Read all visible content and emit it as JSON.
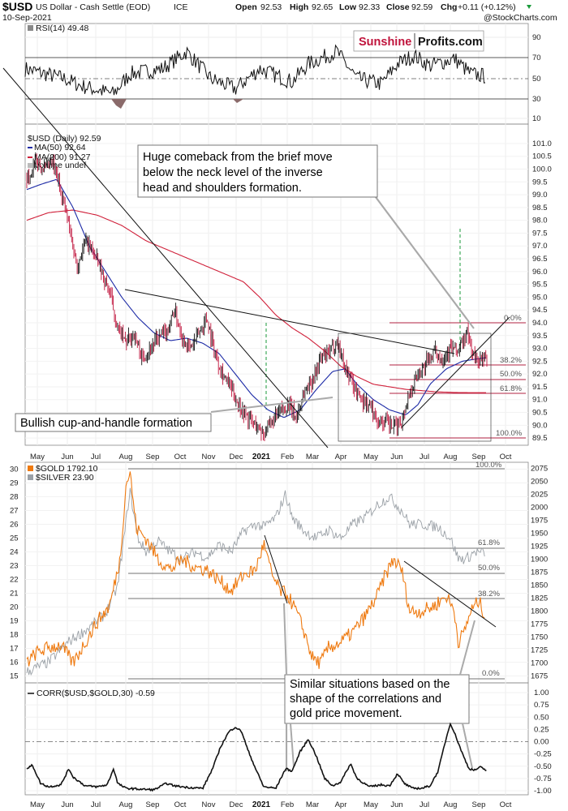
{
  "header": {
    "symbol": "$USD",
    "name": "US Dollar - Cash Settle (EOD)",
    "exchange": "ICE",
    "date": "10-Sep-2021",
    "open_label": "Open",
    "open": "92.53",
    "high_label": "High",
    "high": "92.65",
    "low_label": "Low",
    "low": "92.33",
    "close_label": "Close",
    "close": "92.59",
    "chg_label": "Chg",
    "chg": "+0.11 (+0.12%)",
    "credit": "@StockCharts.com"
  },
  "brand": {
    "part1": "Sunshine",
    "part2": "Profits.com",
    "color1": "#c0143c",
    "color2": "#111111"
  },
  "colors": {
    "price_up": "#000000",
    "price_down": "#c0143c",
    "ma50": "#1c2aa6",
    "ma200": "#d0203a",
    "gold": "#ef7a10",
    "silver": "#9aa0a6",
    "rsi_fill": "#8a6a6a",
    "signal": "#1a9a3a"
  },
  "x_axis": {
    "months": [
      "May",
      "Jun",
      "Jul",
      "Aug",
      "Sep",
      "Oct",
      "Nov",
      "Dec",
      "2021",
      "Feb",
      "Mar",
      "Apr",
      "May",
      "Jun",
      "Jul",
      "Aug",
      "Sep",
      "Oct"
    ]
  },
  "rsi_panel": {
    "legend": "RSI(14) 49.48",
    "ticks": [
      "90",
      "70",
      "50",
      "30",
      "10"
    ],
    "levels": [
      30,
      50,
      70
    ]
  },
  "usd_panel": {
    "legend_main": "$USD (Daily) 92.59",
    "legend_ma50": "MA(50) 92.64",
    "legend_ma200": "MA(200) 91.27",
    "legend_volume": "Volume undef",
    "ticks": [
      "101.0",
      "100.5",
      "100.0",
      "99.5",
      "99.0",
      "98.5",
      "98.0",
      "97.5",
      "97.0",
      "96.5",
      "96.0",
      "95.5",
      "95.0",
      "94.5",
      "94.0",
      "93.5",
      "93.0",
      "92.5",
      "92.0",
      "91.5",
      "91.0",
      "90.5",
      "90.0",
      "89.5"
    ],
    "fib_labels": [
      "0.0%",
      "38.2%",
      "50.0%",
      "61.8%",
      "100.0%"
    ],
    "annotation_top": [
      "Huge comeback from the brief move",
      "below the neck level of the inverse",
      "head and shoulders formation."
    ],
    "annotation_bottom": "Bullish cup-and-handle formation"
  },
  "gold_panel": {
    "legend_gold": "$GOLD 1792.10",
    "legend_silver": "$SILVER 23.90",
    "left_ticks": [
      "30",
      "29",
      "28",
      "27",
      "26",
      "25",
      "24",
      "23",
      "22",
      "21",
      "20",
      "19",
      "18",
      "17",
      "16",
      "15"
    ],
    "right_ticks": [
      "2075",
      "2050",
      "2025",
      "2000",
      "1975",
      "1950",
      "1925",
      "1900",
      "1875",
      "1850",
      "1825",
      "1800",
      "1775",
      "1750",
      "1725",
      "1700",
      "1675"
    ],
    "fib_labels": [
      "100.0%",
      "61.8%",
      "50.0%",
      "38.2%",
      "0.0%"
    ],
    "annotation": [
      "Similar situations based on the",
      "shape of the correlations and",
      "gold price movement."
    ]
  },
  "corr_panel": {
    "legend": "CORR($USD,$GOLD,30) -0.59",
    "ticks": [
      "1.00",
      "0.75",
      "0.50",
      "0.25",
      "0.00",
      "-0.25",
      "-0.50",
      "-0.75",
      "-1.00"
    ]
  },
  "chart_data": [
    {
      "type": "line",
      "title": "RSI(14)",
      "series": [
        {
          "name": "RSI(14)",
          "last": 49.48
        }
      ],
      "ylim": [
        0,
        100
      ],
      "levels": [
        30,
        50,
        70
      ]
    },
    {
      "type": "line",
      "title": "$USD (Daily)",
      "x_range": [
        "2020-05",
        "2021-09-10"
      ],
      "ylim": [
        89.25,
        101.25
      ],
      "series": [
        {
          "name": "$USD",
          "points": [
            [
              "2020-05",
              99.7
            ],
            [
              "2020-06",
              97.2
            ],
            [
              "2020-07",
              96.9
            ],
            [
              "2020-08",
              93.5
            ],
            [
              "2020-09",
              93.0
            ],
            [
              "2020-10",
              94.0
            ],
            [
              "2020-11",
              93.2
            ],
            [
              "2020-12",
              90.5
            ],
            [
              "2021-01",
              89.6
            ],
            [
              "2021-02",
              90.6
            ],
            [
              "2021-03",
              91.0
            ],
            [
              "2021-04",
              93.3
            ],
            [
              "2021-05",
              90.0
            ],
            [
              "2021-06",
              89.7
            ],
            [
              "2021-07",
              92.3
            ],
            [
              "2021-08",
              93.0
            ],
            [
              "2021-08-20",
              93.7
            ],
            [
              "2021-09-10",
              92.59
            ]
          ]
        },
        {
          "name": "MA(50)",
          "last": 92.64
        },
        {
          "name": "MA(200)",
          "last": 91.27
        }
      ],
      "fibonacci": [
        {
          "label": "0.0%",
          "value": 93.8
        },
        {
          "label": "38.2%",
          "value": 92.2
        },
        {
          "label": "50.0%",
          "value": 91.7
        },
        {
          "label": "61.8%",
          "value": 91.3
        },
        {
          "label": "100.0%",
          "value": 89.6
        }
      ]
    },
    {
      "type": "line",
      "title": "$GOLD / $SILVER",
      "series": [
        {
          "name": "$GOLD",
          "last": 1792.1,
          "axis": "right",
          "ylim": [
            1665,
            2085
          ],
          "points": [
            [
              "2020-05",
              1700
            ],
            [
              "2020-06",
              1720
            ],
            [
              "2020-07",
              1790
            ],
            [
              "2020-08",
              2070
            ],
            [
              "2020-09",
              1890
            ],
            [
              "2020-10",
              1900
            ],
            [
              "2020-11",
              1860
            ],
            [
              "2020-12",
              1850
            ],
            [
              "2021-01",
              1850
            ],
            [
              "2021-02",
              1780
            ],
            [
              "2021-03",
              1720
            ],
            [
              "2021-04",
              1760
            ],
            [
              "2021-05",
              1890
            ],
            [
              "2021-06",
              1850
            ],
            [
              "2021-07",
              1800
            ],
            [
              "2021-08",
              1735
            ],
            [
              "2021-09-10",
              1792
            ]
          ]
        },
        {
          "name": "$SILVER",
          "last": 23.9,
          "axis": "left",
          "ylim": [
            14.5,
            30.5
          ],
          "points": [
            [
              "2020-05",
              15.2
            ],
            [
              "2020-06",
              17.5
            ],
            [
              "2020-07",
              19.5
            ],
            [
              "2020-08",
              28.5
            ],
            [
              "2020-09",
              24.0
            ],
            [
              "2020-10",
              24.5
            ],
            [
              "2020-11",
              23.5
            ],
            [
              "2020-12",
              25.5
            ],
            [
              "2021-01",
              26.5
            ],
            [
              "2021-02",
              27.0
            ],
            [
              "2021-03",
              25.0
            ],
            [
              "2021-04",
              25.5
            ],
            [
              "2021-05",
              27.5
            ],
            [
              "2021-06",
              26.0
            ],
            [
              "2021-07",
              25.5
            ],
            [
              "2021-08",
              23.5
            ],
            [
              "2021-09-10",
              23.9
            ]
          ]
        }
      ],
      "fibonacci": [
        {
          "label": "100.0%",
          "value": 2075
        },
        {
          "label": "61.8%",
          "value": 1915
        },
        {
          "label": "50.0%",
          "value": 1870
        },
        {
          "label": "38.2%",
          "value": 1825
        },
        {
          "label": "0.0%",
          "value": 1678
        }
      ]
    },
    {
      "type": "line",
      "title": "CORR($USD,$GOLD,30)",
      "series": [
        {
          "name": "CORR($USD,$GOLD,30)",
          "last": -0.59
        }
      ],
      "ylim": [
        -1.0,
        1.0
      ]
    }
  ]
}
